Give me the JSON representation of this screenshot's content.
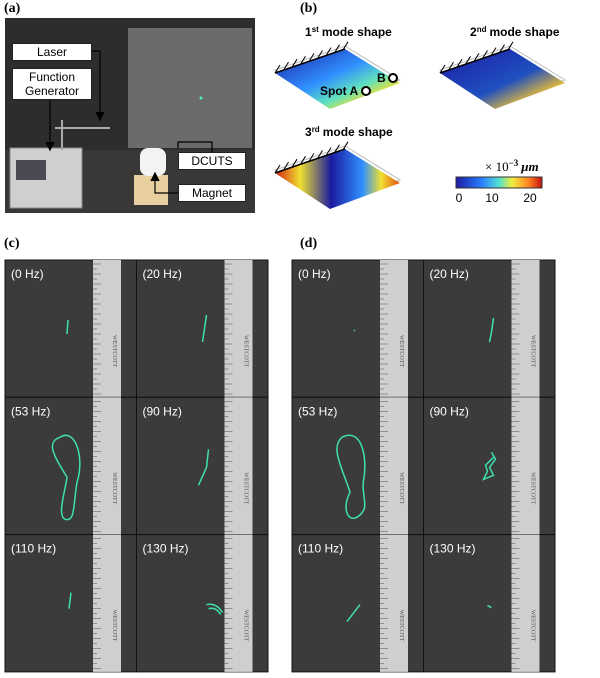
{
  "panel_a": {
    "label": "(a)",
    "labels": {
      "laser": "Laser",
      "function_generator": "Function Generator",
      "dcuts": "DCUTS",
      "magnet": "Magnet"
    }
  },
  "panel_b": {
    "label": "(b)",
    "modes": [
      {
        "number": "1",
        "suffix": "st",
        "label": "mode shape"
      },
      {
        "number": "2",
        "suffix": "nd",
        "label": "mode shape"
      },
      {
        "number": "3",
        "suffix": "rd",
        "label": "mode shape"
      }
    ],
    "spot_a": "Spot A",
    "spot_b": "B",
    "colorbar": {
      "prefix": "× 10",
      "exponent": "−3",
      "unit": "μm",
      "ticks": [
        0,
        10,
        20
      ]
    }
  },
  "panel_c": {
    "label": "(c)",
    "frames": [
      "(0 Hz)",
      "(20 Hz)",
      "(53 Hz)",
      "(90 Hz)",
      "(110 Hz)",
      "(130 Hz)"
    ]
  },
  "panel_d": {
    "label": "(d)",
    "frames": [
      "(0 Hz)",
      "(20 Hz)",
      "(53 Hz)",
      "(90 Hz)",
      "(110 Hz)",
      "(130 Hz)"
    ]
  },
  "ruler_brand": "WESTCOTT"
}
